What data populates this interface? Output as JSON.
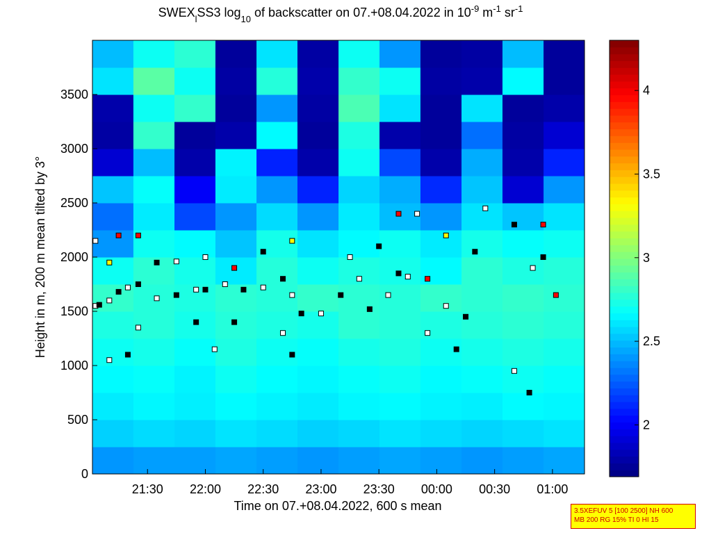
{
  "chart_data": {
    "type": "heatmap",
    "title_parts": [
      {
        "text": "SWEX"
      },
      {
        "text": "l",
        "shift": "sub"
      },
      {
        "text": "SS3 log"
      },
      {
        "text": "10",
        "shift": "sub"
      },
      {
        "text": " of backscatter on 07.+08.04.2022 in 10"
      },
      {
        "text": "-9",
        "shift": "sup"
      },
      {
        "text": " m"
      },
      {
        "text": "-1",
        "shift": "sup"
      },
      {
        "text": " sr"
      },
      {
        "text": "-1",
        "shift": "sup"
      }
    ],
    "x_label": "Time on 07.+08.04.2022, 600 s mean",
    "y_label": "Height in m, 200 m mean tilted by 3°",
    "xlim": [
      21.024,
      25.277
    ],
    "xticks": [
      {
        "value": 21.5,
        "label": "21:30"
      },
      {
        "value": 22,
        "label": "22:00"
      },
      {
        "value": 22.5,
        "label": "22:30"
      },
      {
        "value": 23,
        "label": "23:00"
      },
      {
        "value": 23.5,
        "label": "23:30"
      },
      {
        "value": 24,
        "label": "00:00"
      },
      {
        "value": 24.5,
        "label": "00:30"
      },
      {
        "value": 25,
        "label": "01:00"
      }
    ],
    "ylim": [
      0,
      4000
    ],
    "yticks": [
      0,
      500,
      1000,
      1500,
      2000,
      2500,
      3000,
      3500
    ],
    "clim": [
      1.69,
      4.3
    ],
    "cticks": [
      2,
      2.5,
      3,
      3.5,
      4
    ],
    "colormap": "jet",
    "x_edges": [
      21.024,
      21.378,
      21.733,
      22.087,
      22.442,
      22.796,
      23.151,
      23.505,
      23.859,
      24.214,
      24.568,
      24.923,
      25.277
    ],
    "y_edges": [
      0,
      250,
      500,
      750,
      1000,
      1250,
      1500,
      1750,
      2000,
      2250,
      2500,
      2750,
      3000,
      3250,
      3500,
      3750,
      4000
    ],
    "z": [
      [
        2.4,
        2.42,
        2.42,
        2.44,
        2.42,
        2.4,
        2.42,
        2.44,
        2.42,
        2.4,
        2.42,
        2.44
      ],
      [
        2.55,
        2.58,
        2.56,
        2.6,
        2.58,
        2.55,
        2.57,
        2.6,
        2.58,
        2.56,
        2.58,
        2.6
      ],
      [
        2.62,
        2.65,
        2.63,
        2.66,
        2.64,
        2.62,
        2.65,
        2.66,
        2.64,
        2.63,
        2.66,
        2.65
      ],
      [
        2.66,
        2.68,
        2.64,
        2.7,
        2.67,
        2.65,
        2.68,
        2.7,
        2.66,
        2.68,
        2.7,
        2.68
      ],
      [
        2.7,
        2.72,
        2.68,
        2.74,
        2.7,
        2.68,
        2.72,
        2.74,
        2.7,
        2.72,
        2.74,
        2.72
      ],
      [
        2.74,
        2.76,
        2.72,
        2.76,
        2.74,
        2.72,
        2.78,
        2.76,
        2.74,
        2.76,
        2.78,
        2.76
      ],
      [
        2.8,
        2.76,
        2.74,
        2.78,
        2.76,
        2.8,
        2.78,
        2.76,
        2.8,
        2.78,
        2.8,
        2.78
      ],
      [
        2.7,
        2.78,
        2.72,
        2.62,
        2.76,
        2.7,
        2.74,
        2.72,
        2.66,
        2.78,
        2.74,
        2.76
      ],
      [
        2.4,
        2.7,
        2.66,
        2.52,
        2.72,
        2.6,
        2.66,
        2.7,
        2.62,
        2.72,
        2.68,
        2.7
      ],
      [
        2.3,
        2.62,
        2.2,
        2.4,
        2.58,
        2.4,
        2.62,
        2.5,
        2.4,
        2.6,
        2.52,
        2.6
      ],
      [
        2.52,
        2.68,
        2.0,
        2.62,
        2.4,
        2.1,
        2.56,
        2.46,
        2.12,
        2.52,
        1.9,
        2.4
      ],
      [
        1.9,
        2.5,
        1.8,
        2.64,
        2.1,
        1.8,
        2.7,
        2.2,
        1.8,
        2.46,
        1.8,
        2.1
      ],
      [
        1.78,
        2.8,
        1.76,
        1.8,
        2.66,
        1.76,
        2.74,
        1.8,
        1.76,
        2.3,
        1.78,
        1.9
      ],
      [
        1.8,
        2.7,
        2.8,
        1.76,
        2.4,
        1.78,
        2.86,
        2.6,
        1.76,
        2.6,
        1.76,
        1.8
      ],
      [
        2.6,
        2.9,
        2.7,
        1.78,
        2.76,
        1.8,
        2.8,
        2.7,
        1.78,
        1.8,
        2.66,
        1.76
      ],
      [
        2.5,
        2.7,
        2.78,
        1.76,
        2.6,
        1.78,
        2.7,
        2.4,
        1.76,
        1.78,
        2.5,
        1.76
      ]
    ],
    "points": {
      "x": [
        21.05,
        21.083,
        21.17,
        21.25,
        21.33,
        21.42,
        21.58,
        21.75,
        21.92,
        22.0,
        22.17,
        22.33,
        22.5,
        22.67,
        22.75,
        22.83,
        23.0,
        23.17,
        23.33,
        23.42,
        23.58,
        23.67,
        23.75,
        23.92,
        24.08,
        24.25,
        21.05,
        21.17,
        21.25,
        21.42,
        21.58,
        21.75,
        22.0,
        22.25,
        22.5,
        22.75,
        23.25,
        23.5,
        23.67,
        23.83,
        24.08,
        24.33,
        24.42,
        24.67,
        24.92,
        21.17,
        21.33,
        21.42,
        21.92,
        22.08,
        22.25,
        22.67,
        22.75,
        23.92,
        24.17,
        24.67,
        24.8,
        24.83,
        24.92,
        25.03
      ],
      "y": [
        1550,
        1560,
        1600,
        1680,
        1720,
        1750,
        1620,
        1650,
        1700,
        1700,
        1750,
        1700,
        1720,
        1800,
        1650,
        1480,
        1480,
        1650,
        1800,
        1520,
        1650,
        1850,
        1820,
        1800,
        1550,
        1450,
        2150,
        1950,
        2200,
        2200,
        1950,
        1960,
        2000,
        1900,
        2050,
        2150,
        2000,
        2100,
        2400,
        2400,
        2200,
        2050,
        2450,
        2300,
        2300,
        1050,
        1100,
        1350,
        1400,
        1150,
        1400,
        1300,
        1100,
        1300,
        1150,
        950,
        750,
        1900,
        2000,
        1650
      ],
      "fill": [
        "#ffffff",
        "#000000",
        "#ffffff",
        "#000000",
        "#ffffff",
        "#000000",
        "#ffffff",
        "#000000",
        "#ffffff",
        "#000000",
        "#ffffff",
        "#000000",
        "#ffffff",
        "#000000",
        "#ffffff",
        "#000000",
        "#ffffff",
        "#000000",
        "#ffffff",
        "#000000",
        "#ffffff",
        "#000000",
        "#ffffff",
        "#ff0000",
        "#ffffff",
        "#000000",
        "#ffffff",
        "#ffff00",
        "#ff0000",
        "#ff0000",
        "#000000",
        "#ffffff",
        "#ffffff",
        "#ff0000",
        "#000000",
        "#ffff00",
        "#ffffff",
        "#000000",
        "#ff0000",
        "#ffffff",
        "#ffff00",
        "#000000",
        "#ffffff",
        "#000000",
        "#ff0000",
        "#ffffff",
        "#000000",
        "#ffffff",
        "#000000",
        "#ffffff",
        "#000000",
        "#ffffff",
        "#000000",
        "#ffffff",
        "#000000",
        "#ffffff",
        "#000000",
        "#ffffff",
        "#000000",
        "#ff0000"
      ]
    },
    "annotation": [
      "3.5XEFUV 5 [100 2500] NH 600",
      "MB 200 RG 15% TI 0 HI 15"
    ]
  }
}
